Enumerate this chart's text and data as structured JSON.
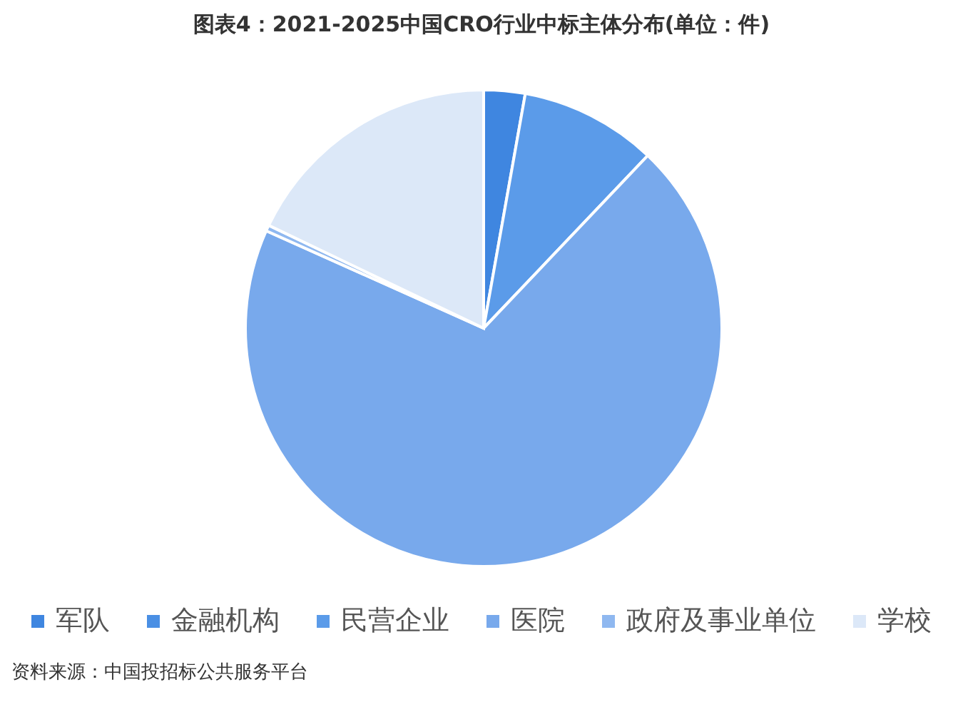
{
  "chart_data": {
    "type": "pie",
    "title": "图表4：2021-2025中国CRO行业中标主体分布(单位：件)",
    "categories": [
      "军队",
      "金融机构",
      "民营企业",
      "医院",
      "政府及事业单位",
      "学校"
    ],
    "values": [
      2.8,
      null,
      9.3,
      69.6,
      0.4,
      17.9
    ],
    "colors": [
      "#3f86e0",
      "#4a8fe4",
      "#5b9be9",
      "#78a9ec",
      "#8fb8f0",
      "#dce8f8"
    ],
    "legend": "bottom",
    "annotations": [
      "资料来源：中国投招标公共服务平台"
    ]
  }
}
